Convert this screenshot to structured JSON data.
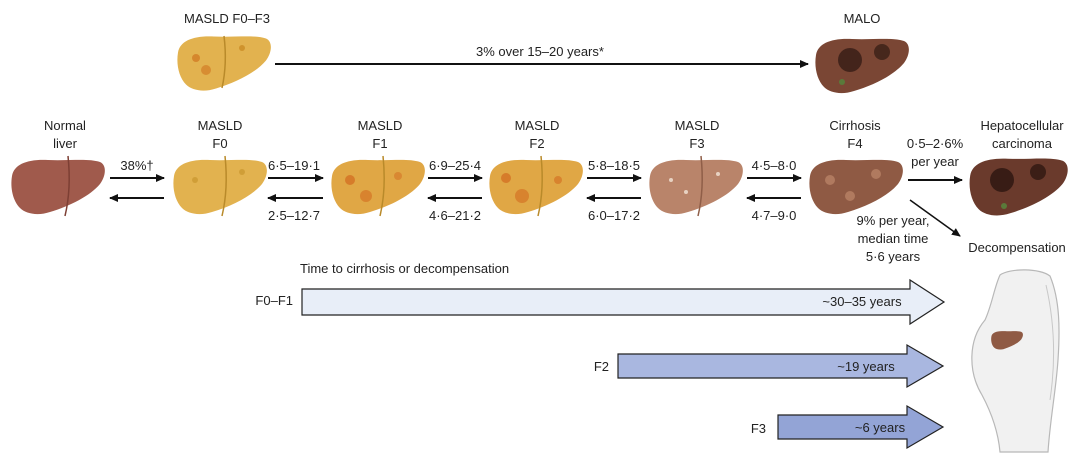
{
  "top": {
    "left_label": "MASLD F0–F3",
    "right_label": "MALO",
    "arrow_label": "3% over 15–20 years*"
  },
  "stages": [
    {
      "line1": "Normal",
      "line2": "liver"
    },
    {
      "line1": "MASLD",
      "line2": "F0"
    },
    {
      "line1": "MASLD",
      "line2": "F1"
    },
    {
      "line1": "MASLD",
      "line2": "F2"
    },
    {
      "line1": "MASLD",
      "line2": "F3"
    },
    {
      "line1": "Cirrhosis",
      "line2": "F4"
    },
    {
      "line1": "Hepatocellular",
      "line2": "carcinoma"
    }
  ],
  "transitions": [
    {
      "forward": "38%†",
      "backward": ""
    },
    {
      "forward": "6·5–19·1",
      "backward": "2·5–12·7"
    },
    {
      "forward": "6·9–25·4",
      "backward": "4·6–21·2"
    },
    {
      "forward": "5·8–18·5",
      "backward": "6·0–17·2"
    },
    {
      "forward": "4·5–8·0",
      "backward": "4·7–9·0"
    }
  ],
  "hcc_rate": {
    "line1": "0·5–2·6%",
    "line2": "per year"
  },
  "decomp_rate": {
    "line1": "9% per year,",
    "line2": "median time",
    "line3": "5·6 years"
  },
  "decomp_label": "Decompensation",
  "timeline": {
    "title": "Time to cirrhosis or decompensation",
    "bars": [
      {
        "stage": "F0–F1",
        "duration": "~30–35 years"
      },
      {
        "stage": "F2",
        "duration": "~19 years"
      },
      {
        "stage": "F3",
        "duration": "~6 years"
      }
    ]
  },
  "colors": {
    "normal_liver": "#a05a4c",
    "fatty_liver": "#e2b24f",
    "f3_liver": "#b9846a",
    "cirrhosis_liver": "#8f5a44",
    "tumor_liver": "#6a3a2c",
    "bar_light": "#e8eef8",
    "bar_mid": "#a9b7e0",
    "bar_dark": "#93a4d6",
    "arrow": "#111111"
  }
}
